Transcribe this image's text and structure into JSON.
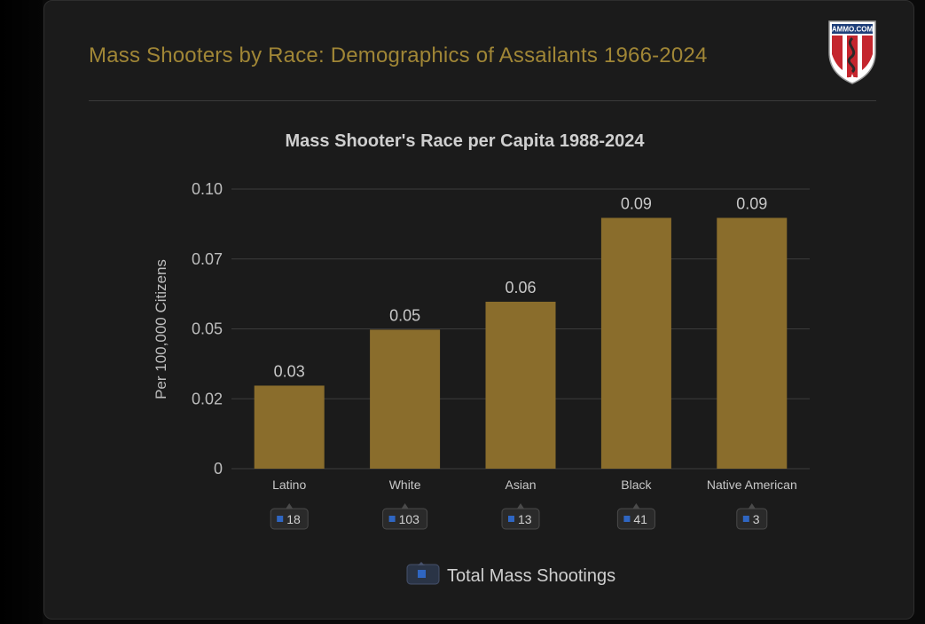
{
  "header": {
    "title": "Mass Shooters by Race: Demographics of Assailants 1966-2024",
    "logo_text": "AMMO.COM"
  },
  "colors": {
    "bar": "#8a6d2c",
    "title": "#a08636",
    "grid": "#3c3c3c",
    "badge_square": "#2f66c2"
  },
  "chart_data": {
    "type": "bar",
    "title": "Mass Shooter's Race per Capita 1988-2024",
    "ylabel": "Per 100,000 Citizens",
    "xlabel": "",
    "ylim": [
      0,
      0.1
    ],
    "yticks": [
      0,
      0.025,
      0.05,
      0.075,
      0.1
    ],
    "ytick_labels": [
      "0",
      "0.02",
      "0.05",
      "0.07",
      "0.10"
    ],
    "categories": [
      "Latino",
      "White",
      "Asian",
      "Black",
      "Native American"
    ],
    "values": [
      0.03,
      0.05,
      0.06,
      0.09,
      0.09
    ],
    "value_labels": [
      "0.03",
      "0.05",
      "0.06",
      "0.09",
      "0.09"
    ],
    "bar_heights": [
      0.0297,
      0.0497,
      0.0597,
      0.0897,
      0.0897
    ],
    "secondary_series": {
      "name": "Total Mass Shootings",
      "values": [
        18,
        103,
        13,
        41,
        3
      ]
    },
    "legend": {
      "label": "Total Mass Shootings",
      "position": "bottom"
    },
    "grid": true
  }
}
